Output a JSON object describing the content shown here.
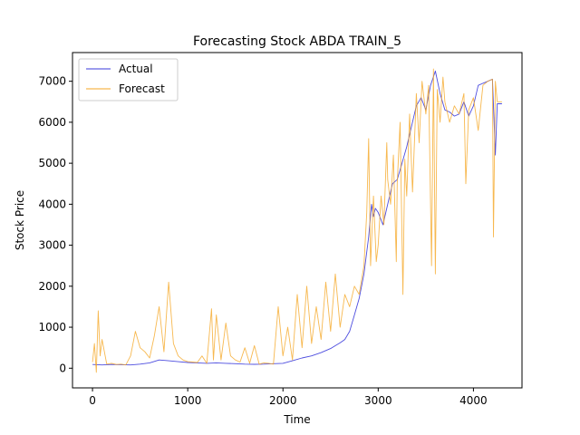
{
  "chart_data": {
    "type": "line",
    "title": "Forecasting Stock ABDA TRAIN_5",
    "xlabel": "Time",
    "ylabel": "Stock Price",
    "xlim": [
      -210,
      4510
    ],
    "ylim": [
      -480,
      7700
    ],
    "xticks": [
      0,
      1000,
      2000,
      3000,
      4000
    ],
    "yticks": [
      0,
      1000,
      2000,
      3000,
      4000,
      5000,
      6000,
      7000
    ],
    "grid": false,
    "legend_position": "upper left",
    "series": [
      {
        "name": "Actual",
        "color": "#3a3adb",
        "x": [
          0,
          100,
          200,
          300,
          400,
          500,
          600,
          700,
          800,
          900,
          1000,
          1100,
          1200,
          1300,
          1400,
          1500,
          1600,
          1700,
          1800,
          1900,
          2000,
          2100,
          2200,
          2300,
          2400,
          2500,
          2600,
          2650,
          2700,
          2750,
          2800,
          2850,
          2900,
          2930,
          2950,
          2970,
          3000,
          3050,
          3100,
          3150,
          3200,
          3250,
          3300,
          3350,
          3400,
          3450,
          3500,
          3550,
          3600,
          3650,
          3700,
          3750,
          3800,
          3850,
          3900,
          3950,
          4000,
          4050,
          4100,
          4150,
          4200,
          4230,
          4250,
          4300
        ],
        "values": [
          90,
          80,
          90,
          85,
          80,
          100,
          130,
          200,
          180,
          160,
          140,
          130,
          120,
          130,
          120,
          110,
          100,
          95,
          100,
          110,
          120,
          180,
          250,
          300,
          380,
          480,
          620,
          700,
          900,
          1300,
          1700,
          2300,
          3200,
          4000,
          3700,
          3900,
          3800,
          3500,
          4000,
          4500,
          4600,
          5000,
          5400,
          5900,
          6400,
          6600,
          6300,
          6900,
          7250,
          6700,
          6300,
          6250,
          6150,
          6200,
          6500,
          6150,
          6400,
          6900,
          6950,
          7000,
          7050,
          5200,
          6450,
          6450
        ]
      },
      {
        "name": "Forecast",
        "color": "#f5a623",
        "x": [
          0,
          20,
          40,
          60,
          80,
          100,
          150,
          200,
          250,
          300,
          350,
          400,
          450,
          500,
          550,
          600,
          650,
          700,
          750,
          800,
          850,
          900,
          950,
          1000,
          1050,
          1100,
          1150,
          1200,
          1250,
          1270,
          1300,
          1350,
          1400,
          1450,
          1500,
          1550,
          1600,
          1650,
          1700,
          1750,
          1800,
          1850,
          1900,
          1950,
          2000,
          2050,
          2100,
          2150,
          2200,
          2250,
          2300,
          2350,
          2400,
          2450,
          2500,
          2550,
          2600,
          2650,
          2700,
          2750,
          2800,
          2850,
          2880,
          2900,
          2920,
          2950,
          2980,
          3000,
          3030,
          3060,
          3090,
          3100,
          3130,
          3160,
          3190,
          3200,
          3230,
          3260,
          3280,
          3300,
          3330,
          3360,
          3400,
          3430,
          3460,
          3500,
          3530,
          3560,
          3580,
          3600,
          3620,
          3650,
          3680,
          3700,
          3750,
          3800,
          3850,
          3900,
          3920,
          3950,
          4000,
          4050,
          4100,
          4150,
          4200,
          4210,
          4230,
          4250,
          4300
        ],
        "values": [
          150,
          600,
          -100,
          1400,
          300,
          700,
          100,
          120,
          90,
          100,
          80,
          300,
          900,
          500,
          400,
          250,
          800,
          1500,
          400,
          2100,
          600,
          300,
          200,
          160,
          150,
          140,
          300,
          120,
          1450,
          200,
          1300,
          200,
          1100,
          300,
          200,
          150,
          500,
          120,
          550,
          100,
          130,
          120,
          100,
          1500,
          300,
          1000,
          200,
          1800,
          500,
          2000,
          600,
          1500,
          700,
          2100,
          900,
          2300,
          1000,
          1800,
          1500,
          2000,
          1800,
          2500,
          3800,
          5600,
          2500,
          4200,
          2600,
          3000,
          4200,
          3500,
          5500,
          4600,
          4000,
          5200,
          2600,
          4500,
          6000,
          1800,
          5100,
          4200,
          6200,
          4300,
          6700,
          5500,
          7000,
          6200,
          6900,
          2500,
          7300,
          2300,
          6800,
          6000,
          7100,
          6500,
          6000,
          6400,
          6200,
          6700,
          4500,
          6300,
          6600,
          5800,
          6900,
          7000,
          7050,
          3200,
          7000,
          6500,
          6500
        ]
      }
    ]
  }
}
